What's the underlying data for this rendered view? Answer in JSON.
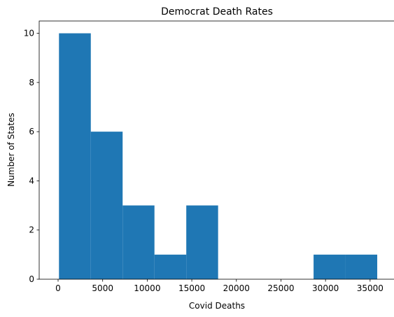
{
  "chart_data": {
    "type": "bar",
    "title": "Democrat Death Rates",
    "xlabel": "Covid Deaths",
    "ylabel": "Number of States",
    "xlim": [
      -2120,
      37760
    ],
    "ylim": [
      0,
      10.5
    ],
    "xticks": [
      0,
      5000,
      10000,
      15000,
      20000,
      25000,
      30000,
      35000
    ],
    "yticks": [
      0,
      2,
      4,
      6,
      8,
      10
    ],
    "bins": [
      {
        "x0": 100,
        "x1": 3670,
        "count": 10
      },
      {
        "x0": 3670,
        "x1": 7240,
        "count": 6
      },
      {
        "x0": 7240,
        "x1": 10810,
        "count": 3
      },
      {
        "x0": 10810,
        "x1": 14380,
        "count": 1
      },
      {
        "x0": 14380,
        "x1": 17950,
        "count": 3
      },
      {
        "x0": 17950,
        "x1": 21520,
        "count": 0
      },
      {
        "x0": 21520,
        "x1": 25090,
        "count": 0
      },
      {
        "x0": 25090,
        "x1": 28660,
        "count": 0
      },
      {
        "x0": 28660,
        "x1": 32230,
        "count": 1
      },
      {
        "x0": 32230,
        "x1": 35800,
        "count": 1
      }
    ],
    "bar_color": "#1f77b4",
    "grid": false,
    "legend": false
  }
}
